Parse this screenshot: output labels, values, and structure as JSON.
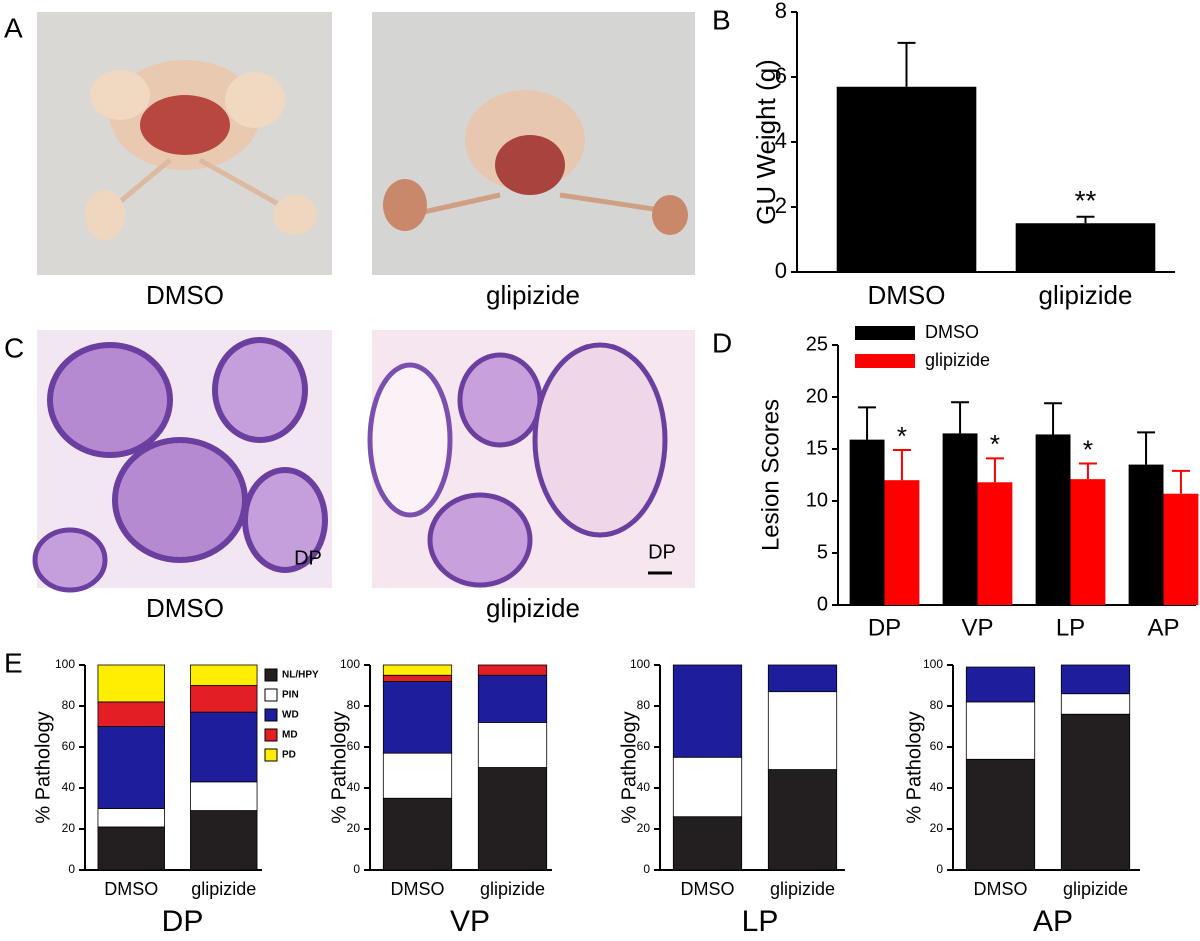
{
  "panel_labels": [
    "A",
    "B",
    "C",
    "D",
    "E"
  ],
  "gross_photos": {
    "labels": [
      "DMSO",
      "glipizide"
    ]
  },
  "histology_photos": {
    "labels": [
      "DMSO",
      "glipizide"
    ],
    "region_labels": [
      "DP",
      "DP"
    ]
  },
  "chart_data": [
    {
      "type": "bar",
      "ylabel": "GU Weight (g)",
      "categories": [
        "DMSO",
        "glipizide"
      ],
      "values": [
        5.7,
        1.5
      ],
      "errors": [
        1.35,
        0.2
      ],
      "significance": [
        null,
        "**"
      ],
      "color": "#000000",
      "ylim": [
        0,
        8
      ],
      "yticks": [
        0,
        2,
        4,
        6,
        8
      ]
    },
    {
      "type": "grouped_bar",
      "ylabel": "Lesion Scores",
      "categories": [
        "DP",
        "VP",
        "LP",
        "AP"
      ],
      "series": [
        {
          "name": "DMSO",
          "color": "#000000",
          "values": [
            15.9,
            16.5,
            16.4,
            13.5
          ],
          "errors": [
            3.1,
            3.0,
            3.0,
            3.1
          ]
        },
        {
          "name": "glipizide",
          "color": "#ff0000",
          "values": [
            12.0,
            11.8,
            12.1,
            10.7
          ],
          "errors": [
            2.9,
            2.3,
            1.5,
            2.2
          ],
          "significance": [
            "*",
            "*",
            "*",
            null
          ]
        }
      ],
      "ylim": [
        0,
        25
      ],
      "yticks": [
        0,
        5,
        10,
        15,
        20,
        25
      ],
      "legend": "upper left"
    },
    {
      "type": "stacked_bar",
      "ylabel": "% Pathology",
      "xlabel": "DP",
      "categories": [
        "DMSO",
        "glipizide"
      ],
      "series": [
        {
          "name": "NL/HPY",
          "color": "#231f20",
          "values": [
            21,
            29
          ]
        },
        {
          "name": "PIN",
          "color": "#ffffff",
          "values": [
            9,
            14
          ]
        },
        {
          "name": "WD",
          "color": "#1e1e9c",
          "values": [
            40,
            34
          ]
        },
        {
          "name": "MD",
          "color": "#e31e24",
          "values": [
            12,
            13
          ]
        },
        {
          "name": "PD",
          "color": "#ffee00",
          "values": [
            18,
            10
          ]
        }
      ],
      "ylim": [
        0,
        100
      ],
      "yticks": [
        0,
        20,
        40,
        60,
        80,
        100
      ],
      "legend": "right"
    },
    {
      "type": "stacked_bar",
      "ylabel": "% Pathology",
      "xlabel": "VP",
      "categories": [
        "DMSO",
        "glipizide"
      ],
      "series": [
        {
          "color": "#231f20",
          "values": [
            35,
            50
          ]
        },
        {
          "color": "#ffffff",
          "values": [
            22,
            22
          ]
        },
        {
          "color": "#1e1e9c",
          "values": [
            35,
            23
          ]
        },
        {
          "color": "#e31e24",
          "values": [
            3,
            5
          ]
        },
        {
          "color": "#ffee00",
          "values": [
            5,
            0
          ]
        }
      ],
      "ylim": [
        0,
        100
      ],
      "yticks": [
        0,
        20,
        40,
        60,
        80,
        100
      ]
    },
    {
      "type": "stacked_bar",
      "ylabel": "% Pathology",
      "xlabel": "LP",
      "categories": [
        "DMSO",
        "glipizide"
      ],
      "series": [
        {
          "color": "#231f20",
          "values": [
            26,
            49
          ]
        },
        {
          "color": "#ffffff",
          "values": [
            29,
            38
          ]
        },
        {
          "color": "#1e1e9c",
          "values": [
            45,
            13
          ]
        }
      ],
      "ylim": [
        0,
        100
      ],
      "yticks": [
        0,
        20,
        40,
        60,
        80,
        100
      ]
    },
    {
      "type": "stacked_bar",
      "ylabel": "% Pathology",
      "xlabel": "AP",
      "categories": [
        "DMSO",
        "glipizide"
      ],
      "series": [
        {
          "color": "#231f20",
          "values": [
            54,
            76
          ]
        },
        {
          "color": "#ffffff",
          "values": [
            28,
            10
          ]
        },
        {
          "color": "#1e1e9c",
          "values": [
            17,
            14
          ]
        }
      ],
      "ylim": [
        0,
        100
      ],
      "yticks": [
        0,
        20,
        40,
        60,
        80,
        100
      ]
    }
  ]
}
